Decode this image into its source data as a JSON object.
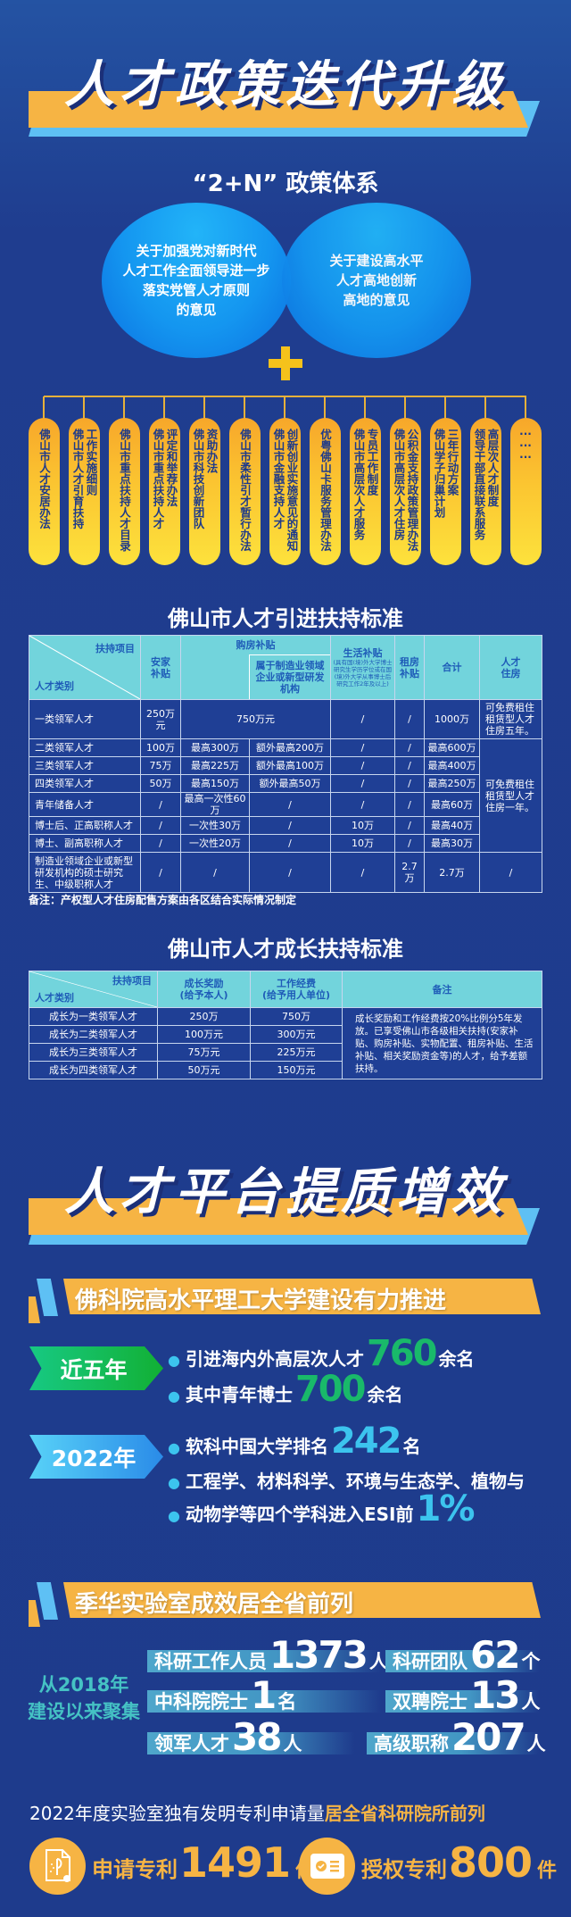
{
  "section1": {
    "title": "人才政策迭代升级",
    "subtitle": "“2+N” 政策体系",
    "circle_left_lines": [
      "关于加强党对新时代",
      "人才工作全面领导进一步",
      "落实党管人才原则",
      "的意见"
    ],
    "circle_right_lines": [
      "关于建设高水平",
      "人才高地创新",
      "高地的意见"
    ],
    "plus_icon": "plus-icon",
    "policies": [
      [
        "佛山市人才安居办法"
      ],
      [
        "佛山市人才引育扶持",
        "工作实施细则"
      ],
      [
        "佛山市重点扶持人才目录"
      ],
      [
        "佛山市重点扶持人才",
        "评定和举荐办法"
      ],
      [
        "佛山市科技创新团队",
        "资助办法"
      ],
      [
        "佛山市柔性引才暂行办法"
      ],
      [
        "佛山市金融支持人才",
        "创新创业实施意见的通知"
      ],
      [
        "优粤佛山卡服务管理办法"
      ],
      [
        "佛山市高层次人才服务",
        "专员工作制度"
      ],
      [
        "佛山市高层次人才住房",
        "公积金支持政策管理办法"
      ],
      [
        "佛山学子归巢计划",
        "三年行动方案"
      ],
      [
        "领导干部直接联系服务",
        "高层次人才制度"
      ],
      [
        "···\n···\n···"
      ]
    ]
  },
  "table1": {
    "title": "佛山市人才引进扶持标准",
    "header": {
      "corner_top": "扶持项目",
      "corner_bottom": "人才类别",
      "settle": "安家\n补贴",
      "purchase": "购房补贴",
      "purchase_sub": "属于制造业领域企业或新型研发机构",
      "living": "生活补贴",
      "living_note": "(具有国(境)外大学博士研究生学历学位或在国(境)外大学从事博士后研究工作2年及以上)",
      "rent": "租房\n补贴",
      "total": "合计",
      "housing": "人才\n住房"
    },
    "rows": [
      {
        "category": "一类领军人才",
        "settle": "250万元",
        "purchase": "750万元",
        "living": "/",
        "rent": "/",
        "total": "1000万",
        "housing": "可免费租住租赁型人才住房五年。"
      },
      {
        "category": "二类领军人才",
        "settle": "100万",
        "purchase": "最高300万",
        "purchase_extra": "额外最高200万",
        "living": "/",
        "rent": "/",
        "total": "最高600万",
        "housing": "可免费租住租赁型人才住房一年。"
      },
      {
        "category": "三类领军人才",
        "settle": "75万",
        "purchase": "最高225万",
        "purchase_extra": "额外最高100万",
        "living": "/",
        "rent": "/",
        "total": "最高400万"
      },
      {
        "category": "四类领军人才",
        "settle": "50万",
        "purchase": "最高150万",
        "purchase_extra": "额外最高50万",
        "living": "/",
        "rent": "/",
        "total": "最高250万"
      },
      {
        "category": "青年储备人才",
        "settle": "/",
        "purchase": "最高一次性60万",
        "purchase_extra": "/",
        "living": "/",
        "rent": "/",
        "total": "最高60万"
      },
      {
        "category": "博士后、正高职称人才",
        "settle": "/",
        "purchase": "一次性30万",
        "purchase_extra": "/",
        "living": "10万",
        "rent": "/",
        "total": "最高40万"
      },
      {
        "category": "博士、副高职称人才",
        "settle": "/",
        "purchase": "一次性20万",
        "purchase_extra": "/",
        "living": "10万",
        "rent": "/",
        "total": "最高30万"
      },
      {
        "category": "制造业领域企业或新型研发机构的硕士研究生、中级职称人才",
        "settle": "/",
        "purchase": "/",
        "purchase_extra": "/",
        "living": "/",
        "rent": "2.7万",
        "total": "2.7万",
        "housing": "/"
      }
    ],
    "note": "备注：产权型人才住房配售方案由各区结合实际情况制定"
  },
  "table2": {
    "title": "佛山市人才成长扶持标准",
    "header": {
      "corner_top": "扶持项目",
      "corner_bottom": "人才类别",
      "reward": "成长奖励\n(给予本人)",
      "funding": "工作经费\n(给予用人单位)",
      "remark": "备注"
    },
    "rows": [
      {
        "category": "成长为一类领军人才",
        "reward": "250万",
        "funding": "750万"
      },
      {
        "category": "成长为二类领军人才",
        "reward": "100万元",
        "funding": "300万元"
      },
      {
        "category": "成长为三类领军人才",
        "reward": "75万元",
        "funding": "225万元"
      },
      {
        "category": "成长为四类领军人才",
        "reward": "50万元",
        "funding": "150万元"
      }
    ],
    "remark": "成长奖励和工作经费按20%比例分5年发放。已享受佛山市各级相关扶持(安家补贴、购房补贴、实物配置、租房补贴、生活补贴、相关奖励资金等)的人才，给予差额扶持。"
  },
  "section2": {
    "title": "人才平台提质增效",
    "fosu": {
      "heading": "佛科院高水平理工大学建设有力推进",
      "period1": "近五年",
      "p1_line1": {
        "pre": "引进海内外高层次人才",
        "num": "760",
        "post": "余名"
      },
      "p1_line2": {
        "pre": "其中青年博士",
        "num": "700",
        "post": "余名"
      },
      "period2": "2022年",
      "p2_line1": {
        "pre": "软科中国大学排名",
        "num": "242",
        "post": "名"
      },
      "p2_line2": "工程学、材料科学、环境与生态学、植物与",
      "p2_line3": {
        "pre": "动物学等四个学科进入ESI前",
        "num": "1%"
      }
    },
    "jihua": {
      "heading": "季华实验室成效居全省前列",
      "since_lines": [
        "从2018年",
        "建设以来聚集"
      ],
      "stats": [
        {
          "label": "科研工作人员",
          "num": "1373",
          "unit": "人"
        },
        {
          "label": "科研团队",
          "num": "62",
          "unit": "个"
        },
        {
          "label": "中科院院士",
          "num": "1",
          "unit": "名"
        },
        {
          "label": "双聘院士",
          "num": "13",
          "unit": "人"
        },
        {
          "label": "领军人才",
          "num": "38",
          "unit": "人"
        },
        {
          "label": "高级职称",
          "num": "207",
          "unit": "人"
        }
      ],
      "patent_line": {
        "pre": "2022年度实验室独有发明专利申请量",
        "highlight": "居全省科研院所前列"
      },
      "patents": [
        {
          "label": "申请专利",
          "num": "1491",
          "unit": "件",
          "icon": "patent-document-icon"
        },
        {
          "label": "授权专利",
          "num": "800",
          "unit": "件",
          "icon": "certificate-icon"
        }
      ]
    }
  },
  "colors": {
    "background": "#1e3b8c",
    "banner_orange": "#f6b444",
    "banner_blue": "#5ec0f4",
    "pill_yellow": "#fbc531",
    "table_header": "#72d4dc",
    "green_number": "#19b96a",
    "cyan_number": "#3cc4ee"
  }
}
